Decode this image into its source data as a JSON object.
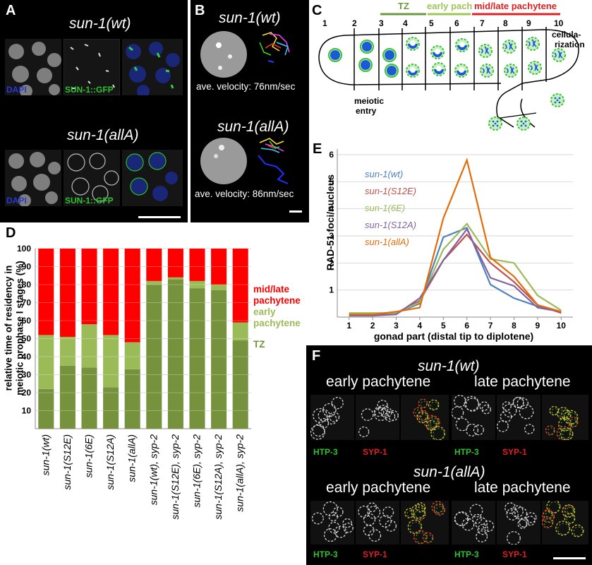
{
  "panel_a": {
    "label": "A",
    "top_genotype": "sun-1(wt)",
    "bottom_genotype": "sun-1(allA)",
    "dapi": "DAPI",
    "gfp": "SUN-1::GFP"
  },
  "panel_b": {
    "label": "B",
    "top_genotype": "sun-1(wt)",
    "top_velocity": "ave. velocity: 76nm/sec",
    "bottom_genotype": "sun-1(allA)",
    "bottom_velocity": "ave. velocity: 86nm/sec"
  },
  "panel_c": {
    "label": "C",
    "stage_tz": "TZ",
    "stage_early": "early pach",
    "stage_mid": "mid/late pachytene",
    "numbers": [
      "1",
      "2",
      "3",
      "4",
      "5",
      "6",
      "7",
      "8",
      "9",
      "10"
    ],
    "cellularization_1": "cellula-",
    "cellularization_2": "rization",
    "meiotic_1": "meiotic",
    "meiotic_2": "entry",
    "colors": {
      "tz": "#6e9a3f",
      "early": "#9fc45a",
      "mid": "#e02020",
      "nucleus": "#1a5ad6",
      "rim": "#3cc03c"
    }
  },
  "panel_d": {
    "label": "D",
    "ylabel_1": "relative time of residency in",
    "ylabel_2": "meiotic prophase I stages (%)",
    "legend_mid_1": "mid/late",
    "legend_mid_2": "pachytene",
    "legend_early_1": "early",
    "legend_early_2": "pachytene",
    "legend_tz": "TZ",
    "yticks": [
      "10",
      "20",
      "30",
      "40",
      "50",
      "60",
      "70",
      "80",
      "90",
      "100"
    ]
  },
  "panel_e": {
    "label": "E",
    "ylabel": "RAD-51 foci/nucleus",
    "xlabel": "gonad part (distal tip to diplotene)"
  },
  "chart_data": [
    {
      "type": "bar",
      "stacked": true,
      "categories": [
        "sun-1(wt)",
        "sun-1(S12E)",
        "sun-1(6E)",
        "sun-1(S12A)",
        "sun-1(allA)",
        "sun-1(wt), syp-2",
        "sun-1(S12E), syp-2",
        "sun-1(6E), syp-2",
        "sun-1(S12A), syp-2",
        "sun-1(allA), syp-2"
      ],
      "series": [
        {
          "name": "TZ",
          "color": "#76923c",
          "values": [
            22,
            35,
            34,
            23,
            33,
            80,
            83,
            78,
            77,
            49
          ]
        },
        {
          "name": "early pachytene",
          "color": "#9bbb59",
          "values": [
            30,
            16,
            24,
            29,
            15,
            2,
            1,
            4,
            3,
            10
          ]
        },
        {
          "name": "mid/late pachytene",
          "color": "#ff0000",
          "values": [
            48,
            49,
            42,
            48,
            52,
            18,
            16,
            18,
            20,
            41
          ]
        }
      ],
      "ylim": [
        0,
        100
      ],
      "yticks": [
        10,
        20,
        30,
        40,
        50,
        60,
        70,
        80,
        90,
        100
      ],
      "grid": true,
      "legend": "right"
    },
    {
      "type": "line",
      "x": [
        1,
        2,
        3,
        4,
        5,
        6,
        7,
        8,
        9,
        10
      ],
      "xlabel": "gonad part (distal tip to diplotene)",
      "ylabel": "RAD-51 foci/nucleus",
      "ylim": [
        0,
        6
      ],
      "yticks": [
        1,
        2,
        3,
        4,
        5,
        6
      ],
      "grid": true,
      "legend": "top-left",
      "series": [
        {
          "name": "sun-1(wt)",
          "color": "#4f81bd",
          "values": [
            0.1,
            0.1,
            0.15,
            0.5,
            2.95,
            3.3,
            1.2,
            0.7,
            0.4,
            0.2
          ]
        },
        {
          "name": "sun-1(S12E)",
          "color": "#c0504d",
          "values": [
            0.1,
            0.1,
            0.15,
            0.6,
            2.1,
            3.05,
            2.0,
            1.3,
            0.45,
            0.15
          ]
        },
        {
          "name": "sun-1(6E)",
          "color": "#9bbb59",
          "values": [
            0.15,
            0.15,
            0.15,
            0.55,
            2.5,
            3.45,
            2.15,
            2.0,
            0.8,
            0.25
          ]
        },
        {
          "name": "sun-1(S12A)",
          "color": "#8064a2",
          "values": [
            0.05,
            0.05,
            0.1,
            0.7,
            2.1,
            3.25,
            1.45,
            1.15,
            0.35,
            0.2
          ]
        },
        {
          "name": "sun-1(allA)",
          "color": "#e36c09",
          "values": [
            0.1,
            0.1,
            0.2,
            0.35,
            3.65,
            5.8,
            2.2,
            1.5,
            0.45,
            0.2
          ]
        }
      ]
    }
  ],
  "panel_f": {
    "label": "F",
    "top_genotype": "sun-1(wt)",
    "bottom_genotype": "sun-1(allA)",
    "early": "early pachytene",
    "late": "late pachytene",
    "htp3": "HTP-3",
    "syp1": "SYP-1"
  }
}
